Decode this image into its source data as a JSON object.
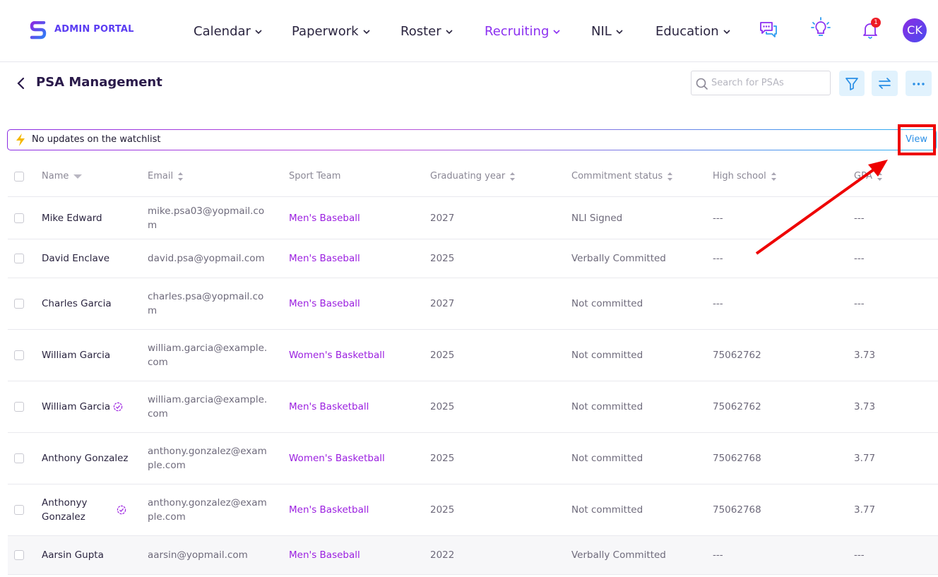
{
  "header": {
    "brand": "ADMIN PORTAL",
    "nav": [
      "Calendar",
      "Paperwork",
      "Roster",
      "Recruiting",
      "NIL",
      "Education"
    ],
    "notification_count": "1",
    "avatar": "CK"
  },
  "page": {
    "title": "PSA Management",
    "search_placeholder": "Search for PSAs"
  },
  "watchlist": {
    "message": "No updates on the watchlist",
    "action": "View"
  },
  "table": {
    "columns": [
      "Name",
      "Email",
      "Sport Team",
      "Graduating year",
      "Commitment status",
      "High school",
      "GPA"
    ],
    "rows": [
      [
        "Mike Edward",
        "mike.psa03@yopmail.com",
        "Men's Baseball",
        2027,
        "NLI Signed",
        "---",
        "---"
      ],
      [
        "David Enclave",
        "david.psa@yopmail.com",
        "Men's Baseball",
        2025,
        "Verbally Committed",
        "---",
        "---"
      ],
      [
        "Charles Garcia",
        "charles.psa@yopmail.com",
        "Men's Baseball",
        2027,
        "Not committed",
        "---",
        "---"
      ],
      [
        "William Garcia",
        "william.garcia@example.com",
        "Women's Basketball",
        2025,
        "Not committed",
        75062762,
        3.73
      ],
      [
        "William Garcia",
        "william.garcia@example.com",
        "Men's Basketball",
        2025,
        "Not committed",
        75062762,
        3.73
      ],
      [
        "Anthony Gonzalez",
        "anthony.gonzalez@example.com",
        "Women's Basketball",
        2025,
        "Not committed",
        75062768,
        3.77
      ],
      [
        "Anthonyy Gonzalez",
        "anthony.gonzalez@example.com",
        "Men's Basketball",
        2025,
        "Not committed",
        75062768,
        3.77
      ],
      [
        "Aarsin Gupta",
        "aarsin@yopmail.com",
        "Men's Baseball",
        2022,
        "Verbally Committed",
        "---",
        "---"
      ]
    ],
    "verified": [
      false,
      false,
      false,
      false,
      true,
      false,
      true,
      false
    ]
  }
}
